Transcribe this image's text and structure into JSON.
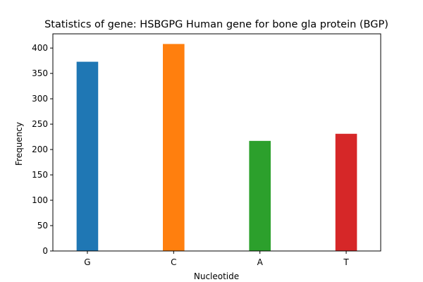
{
  "chart_data": {
    "type": "bar",
    "title": "Statistics of gene: HSBGPG Human gene for bone gla protein (BGP)",
    "xlabel": "Nucleotide",
    "ylabel": "Frequency",
    "categories": [
      "G",
      "C",
      "A",
      "T"
    ],
    "values": [
      373,
      408,
      217,
      231
    ],
    "colors": [
      "#1f77b4",
      "#ff7f0e",
      "#2ca02c",
      "#d62728"
    ],
    "ylim": [
      0,
      428
    ],
    "yticks": [
      0,
      50,
      100,
      150,
      200,
      250,
      300,
      350,
      400
    ],
    "grid": false,
    "legend": "none"
  }
}
